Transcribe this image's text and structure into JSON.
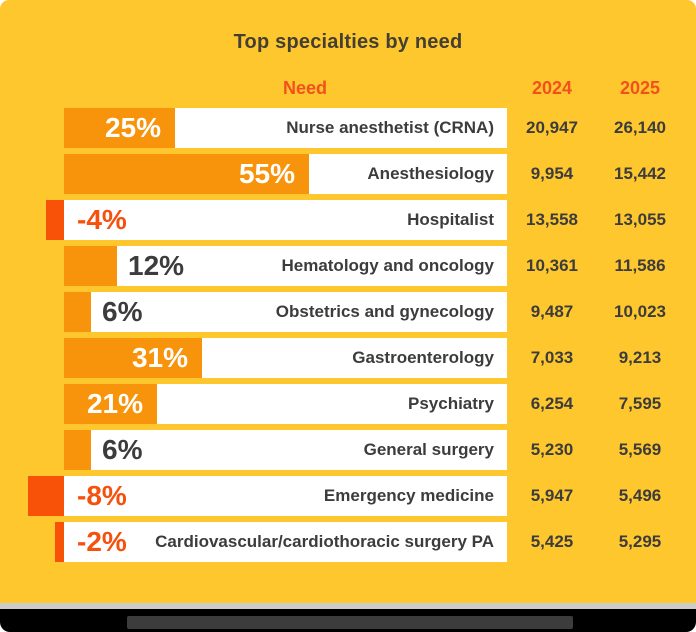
{
  "chart": {
    "title": "Top specialties by need",
    "columns": {
      "need": "Need",
      "y2024": "2024",
      "y2025": "2025"
    },
    "rows": [
      {
        "label": "Nurse anesthetist (CRNA)",
        "pct": 25,
        "pct_label": "25%",
        "v2024": "20,947",
        "v2025": "26,140"
      },
      {
        "label": "Anesthesiology",
        "pct": 55,
        "pct_label": "55%",
        "v2024": "9,954",
        "v2025": "15,442"
      },
      {
        "label": "Hospitalist",
        "pct": -4,
        "pct_label": "-4%",
        "v2024": "13,558",
        "v2025": "13,055"
      },
      {
        "label": "Hematology and oncology",
        "pct": 12,
        "pct_label": "12%",
        "v2024": "10,361",
        "v2025": "11,586"
      },
      {
        "label": "Obstetrics and gynecology",
        "pct": 6,
        "pct_label": "6%",
        "v2024": "9,487",
        "v2025": "10,023"
      },
      {
        "label": "Gastroenterology",
        "pct": 31,
        "pct_label": "31%",
        "v2024": "7,033",
        "v2025": "9,213"
      },
      {
        "label": "Psychiatry",
        "pct": 21,
        "pct_label": "21%",
        "v2024": "6,254",
        "v2025": "7,595"
      },
      {
        "label": "General surgery",
        "pct": 6,
        "pct_label": "6%",
        "v2024": "5,230",
        "v2025": "5,569"
      },
      {
        "label": "Emergency medicine",
        "pct": -8,
        "pct_label": "-8%",
        "v2024": "5,947",
        "v2025": "5,496"
      },
      {
        "label": "Cardiovascular/cardiothoracic surgery PA",
        "pct": -2,
        "pct_label": "-2%",
        "v2024": "5,425",
        "v2025": "5,295"
      }
    ]
  },
  "chart_data": {
    "type": "bar",
    "orientation": "horizontal",
    "title": "Top specialties by need",
    "columns": [
      "Need",
      "2024",
      "2025"
    ],
    "categories": [
      "Nurse anesthetist (CRNA)",
      "Anesthesiology",
      "Hospitalist",
      "Hematology and oncology",
      "Obstetrics and gynecology",
      "Gastroenterology",
      "Psychiatry",
      "General surgery",
      "Emergency medicine",
      "Cardiovascular/cardiothoracic surgery PA"
    ],
    "series": [
      {
        "name": "Need % change",
        "values": [
          25,
          55,
          -4,
          12,
          6,
          31,
          21,
          6,
          -8,
          -2
        ]
      },
      {
        "name": "2024",
        "values": [
          20947,
          9954,
          13558,
          10361,
          9487,
          7033,
          6254,
          5230,
          5947,
          5425
        ]
      },
      {
        "name": "2025",
        "values": [
          26140,
          15442,
          13055,
          11586,
          10023,
          9213,
          7595,
          5569,
          5496,
          5295
        ]
      }
    ],
    "legend": "none",
    "grid": false,
    "notes": "Positive bars extend right from baseline in orange with white labels when wide; negative bars extend left of baseline in red-orange with red labels on white rows."
  },
  "colors": {
    "background": "#FFC72E",
    "row_background": "#FFFFFF",
    "bar_positive": "#F8940B",
    "bar_negative": "#F85108",
    "accent_header": "#F2511D",
    "text_dark": "#3C3C3C",
    "title_text": "#443F33",
    "divider": "#CBCBCB",
    "footer_background": "#000000",
    "footer_blur_bar": "#3C3C3C"
  }
}
